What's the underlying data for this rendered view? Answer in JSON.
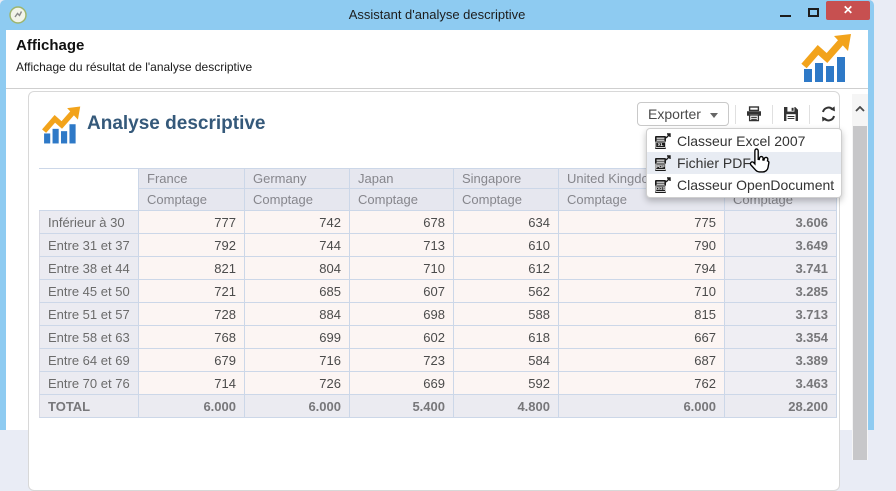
{
  "window": {
    "title": "Assistant d'analyse descriptive",
    "close_glyph": "✕"
  },
  "wizard_header": {
    "title": "Affichage",
    "subtitle": "Affichage du résultat de l'analyse descriptive"
  },
  "report": {
    "title": "Analyse descriptive",
    "toolbar": {
      "export_label": "Exporter"
    },
    "export_menu": {
      "items": [
        {
          "icon": "excel-file-icon",
          "badge": "XL",
          "label": "Classeur Excel 2007"
        },
        {
          "icon": "pdf-file-icon",
          "badge": "PDF",
          "label": "Fichier PDF"
        },
        {
          "icon": "ods-file-icon",
          "badge": "ODS",
          "label": "Classeur OpenDocument"
        }
      ],
      "hovered_item": "Fichier PDF"
    },
    "table": {
      "corner": "",
      "column_headers": [
        "France",
        "Germany",
        "Japan",
        "Singapore",
        "United Kingdom",
        ""
      ],
      "measure_headers": [
        "Comptage",
        "Comptage",
        "Comptage",
        "Comptage",
        "Comptage",
        "Comptage"
      ],
      "rows": [
        {
          "label": "Inférieur à 30",
          "values": [
            "777",
            "742",
            "678",
            "634",
            "775",
            "3.606"
          ]
        },
        {
          "label": "Entre 31 et 37",
          "values": [
            "792",
            "744",
            "713",
            "610",
            "790",
            "3.649"
          ]
        },
        {
          "label": "Entre 38 et 44",
          "values": [
            "821",
            "804",
            "710",
            "612",
            "794",
            "3.741"
          ]
        },
        {
          "label": "Entre 45 et 50",
          "values": [
            "721",
            "685",
            "607",
            "562",
            "710",
            "3.285"
          ]
        },
        {
          "label": "Entre 51 et 57",
          "values": [
            "728",
            "884",
            "698",
            "588",
            "815",
            "3.713"
          ]
        },
        {
          "label": "Entre 58 et 63",
          "values": [
            "768",
            "699",
            "602",
            "618",
            "667",
            "3.354"
          ]
        },
        {
          "label": "Entre 64 et 69",
          "values": [
            "679",
            "716",
            "723",
            "584",
            "687",
            "3.389"
          ]
        },
        {
          "label": "Entre 70 et 76",
          "values": [
            "714",
            "726",
            "669",
            "592",
            "762",
            "3.463"
          ]
        },
        {
          "label": "TOTAL",
          "values": [
            "6.000",
            "6.000",
            "5.400",
            "4.800",
            "6.000",
            "28.200"
          ],
          "is_total": true
        }
      ]
    }
  },
  "colors": {
    "titlebar_blue": "#8ECBF1",
    "close_red": "#C75050",
    "logo_blue": "#2E79C7",
    "logo_orange": "#F2A31B",
    "report_title": "#35597A",
    "table_border": "#ccd7e8",
    "header_bg": "#E6E7EF",
    "label_bg": "#EBEBF1",
    "cell_bg": "#FCF5F3"
  }
}
